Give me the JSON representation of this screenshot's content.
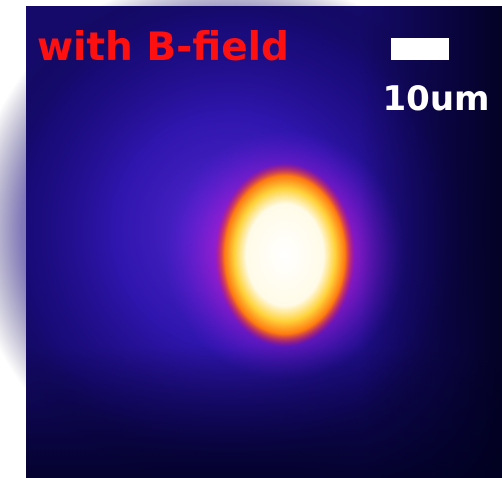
{
  "image": {
    "label": "with B-field"
  },
  "scale_bar": {
    "label": "10um"
  }
}
